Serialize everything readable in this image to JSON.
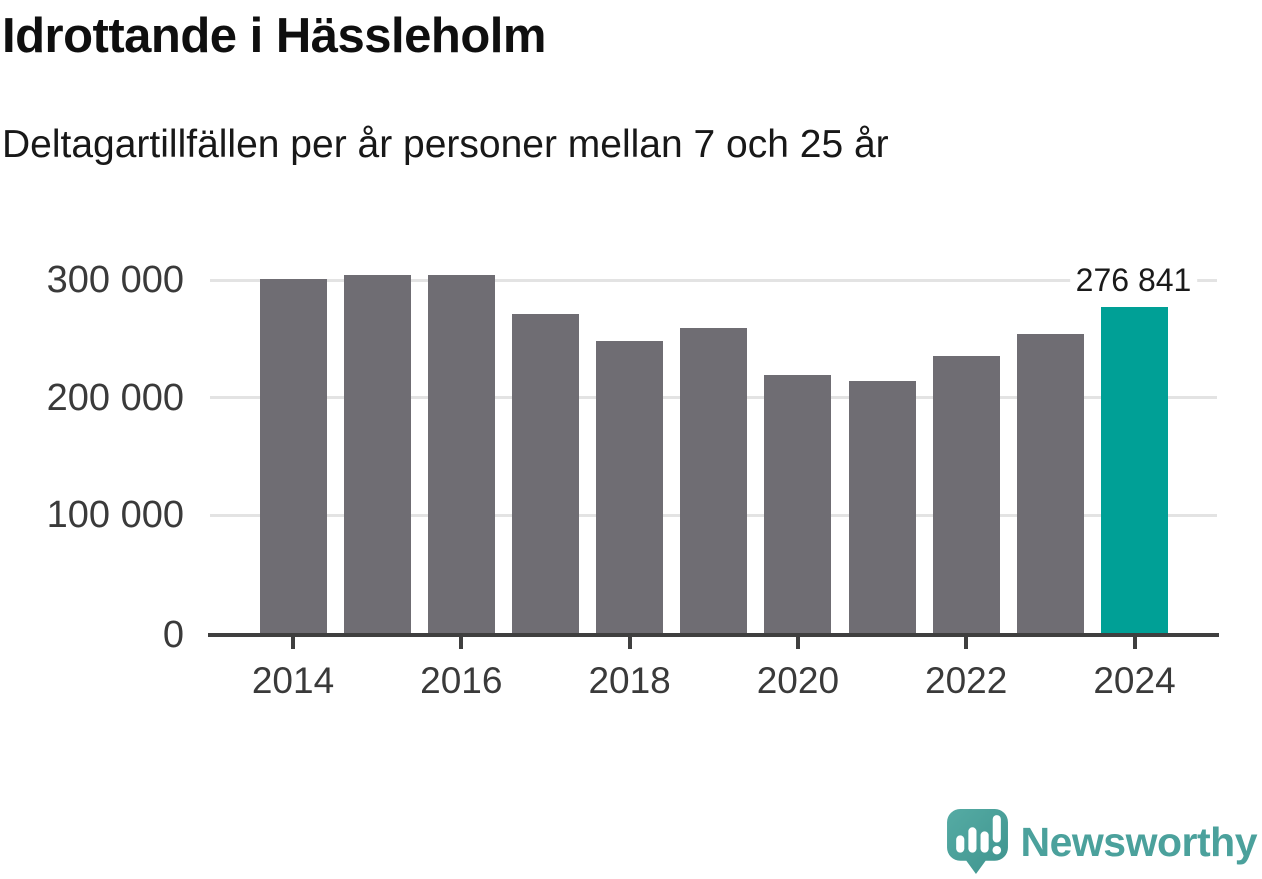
{
  "chart_data": {
    "type": "bar",
    "title": "Idrottande i Hässleholm",
    "subtitle": "Deltagartillfällen per år personer mellan 7 och 25 år",
    "categories": [
      "2014",
      "2015",
      "2016",
      "2017",
      "2018",
      "2019",
      "2020",
      "2021",
      "2022",
      "2023",
      "2024"
    ],
    "values": [
      301000,
      304000,
      304000,
      271000,
      248000,
      259000,
      219000,
      214000,
      235000,
      254000,
      276841
    ],
    "highlight_category": "2024",
    "annotation": {
      "category": "2024",
      "label": "276 841"
    },
    "x_tick_labels": [
      "2014",
      "2016",
      "2018",
      "2020",
      "2022",
      "2024"
    ],
    "y_ticks": [
      {
        "value": 0,
        "label": "0"
      },
      {
        "value": 100000,
        "label": "100 000"
      },
      {
        "value": 200000,
        "label": "200 000"
      },
      {
        "value": 300000,
        "label": "300 000"
      }
    ],
    "ylim": [
      0,
      300000
    ],
    "grid": "horizontal",
    "legend": "none",
    "bar_color": "#6f6d73",
    "highlight_color": "#00a096",
    "gridline_color": "#e3e3e3",
    "axis_color": "#3f3f3f"
  },
  "footer": {
    "brand": "Newsworthy",
    "brand_color": "#4ba19c"
  }
}
